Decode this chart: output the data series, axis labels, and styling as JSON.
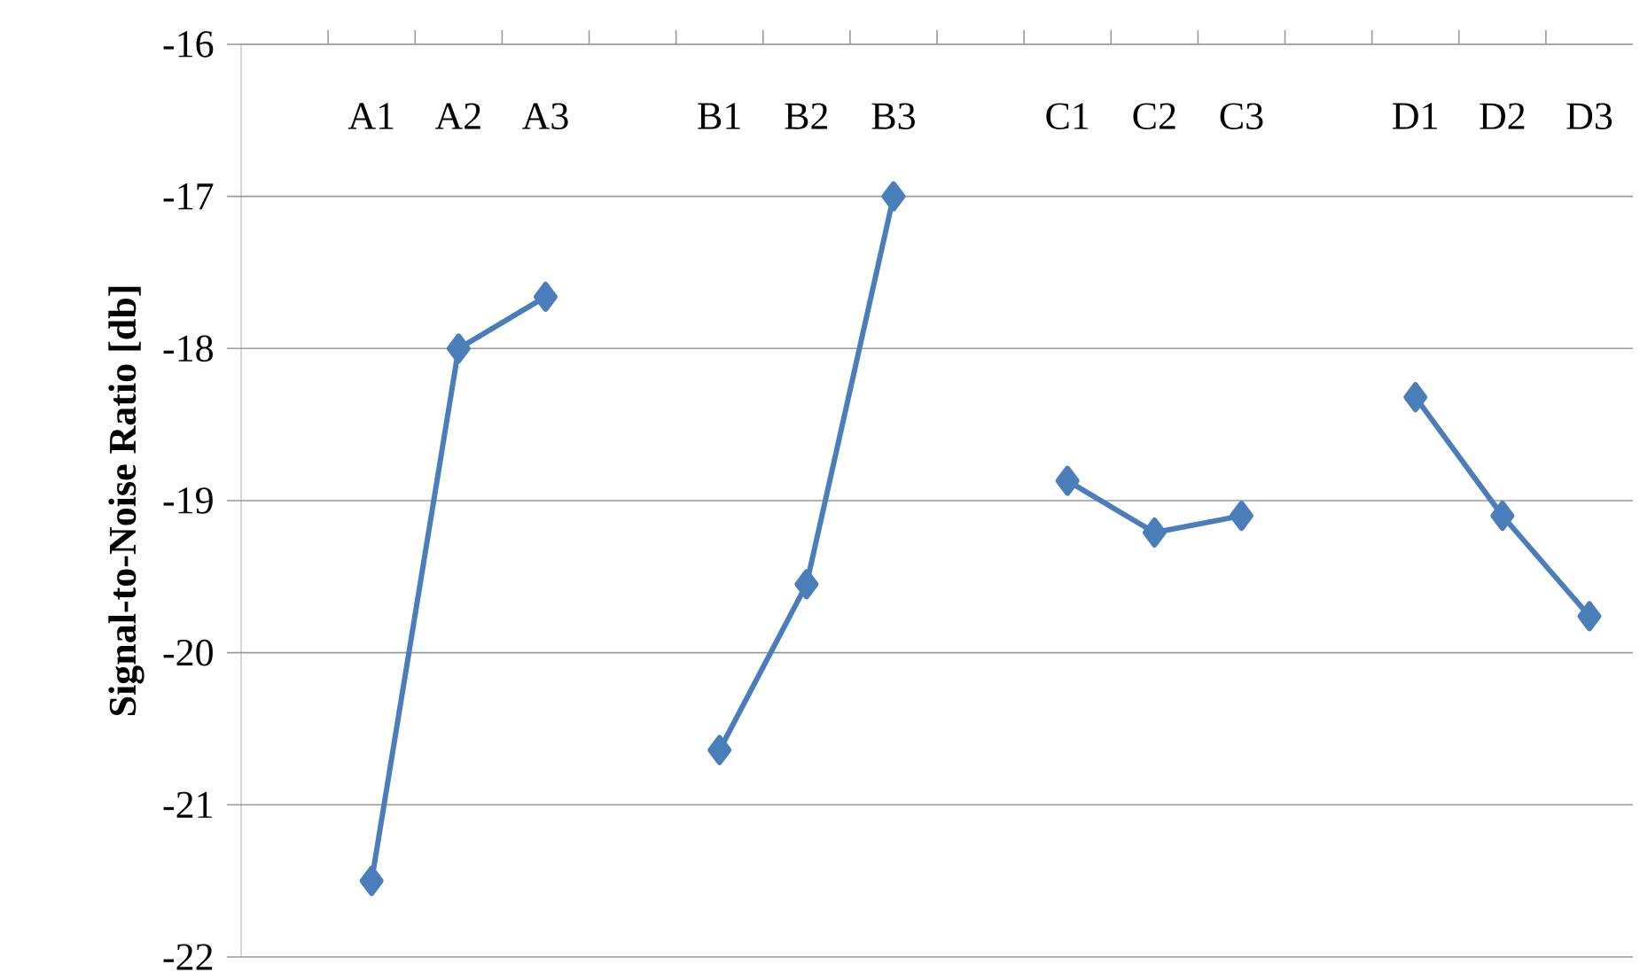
{
  "chart_data": {
    "type": "line",
    "ylabel": "Signal-to-Noise Ratio [db]",
    "categories": [
      null,
      "A1",
      "A2",
      "A3",
      null,
      "B1",
      "B2",
      "B3",
      null,
      "C1",
      "C2",
      "C3",
      null,
      "D1",
      "D2",
      "D3"
    ],
    "values": [
      null,
      -21.5,
      -18.0,
      -17.66,
      null,
      -20.64,
      -19.55,
      -17.0,
      null,
      -18.87,
      -19.21,
      -19.1,
      null,
      -18.32,
      -19.1,
      -19.76
    ],
    "color": "#4a7ebb",
    "marker": "diamond",
    "line_style": "solid",
    "grid": "y",
    "ylim": [
      -22,
      -16
    ],
    "yticks": [
      -22,
      -21,
      -20,
      -19,
      -18,
      -17,
      -16
    ]
  }
}
